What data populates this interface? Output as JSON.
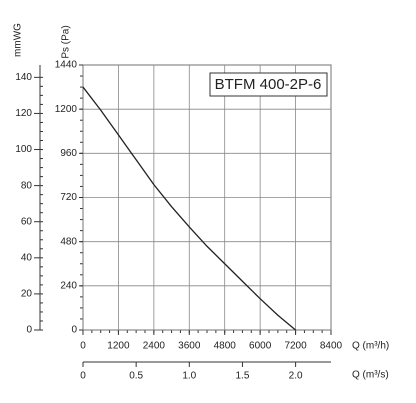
{
  "chart_data": {
    "type": "line",
    "annotation": "BTFM 400-2P-6",
    "ylabel": "Ps (Pa)",
    "y2label": "mmWG",
    "xlabel": "Q (m³/h)",
    "x2label": "Q (m³/s)",
    "x": [
      0,
      600,
      1200,
      1800,
      2400,
      3000,
      3600,
      4200,
      4800,
      5400,
      6000,
      6600,
      7200
    ],
    "series": [
      {
        "name": "BTFM 400-2P-6",
        "color": "#222222",
        "values": [
          1320,
          1195,
          1060,
          925,
          790,
          670,
          560,
          455,
          360,
          265,
          170,
          80,
          0
        ]
      }
    ],
    "xlim": [
      0,
      8400
    ],
    "xticks": [
      0,
      1200,
      2400,
      3600,
      4800,
      6000,
      7200,
      8400
    ],
    "ylim": [
      0,
      1440
    ],
    "yticks": [
      0,
      240,
      480,
      720,
      960,
      1200,
      1440
    ],
    "y2lim": [
      0,
      146.84
    ],
    "y2ticks": [
      0,
      20,
      40,
      60,
      80,
      100,
      120,
      140
    ],
    "x2lim": [
      0,
      2.333
    ],
    "x2ticks": [
      0,
      0.5,
      {
        "value": 1,
        "label": "1.0"
      },
      1.5,
      {
        "value": 2,
        "label": "2.0"
      }
    ],
    "grid": true
  }
}
